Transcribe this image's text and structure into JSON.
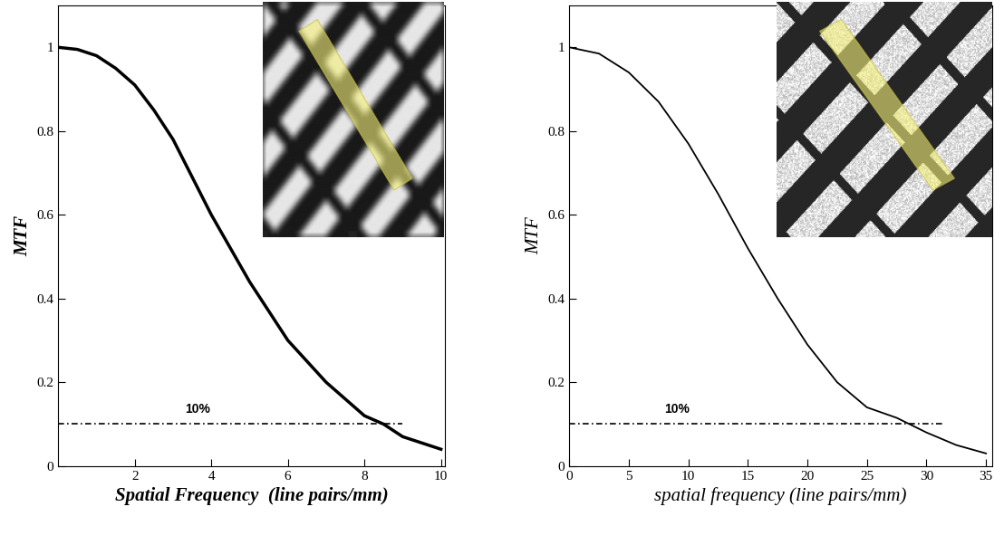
{
  "chart_data": [
    {
      "type": "line",
      "x_label": "Spatial Frequency  (line pairs/mm)",
      "y_label": "MTF",
      "x": [
        0,
        0.5,
        1,
        1.5,
        2,
        2.5,
        3,
        3.5,
        4,
        4.5,
        5,
        5.5,
        6,
        6.5,
        7,
        7.5,
        8,
        8.5,
        9,
        9.5,
        10
      ],
      "values": [
        1.0,
        0.995,
        0.98,
        0.95,
        0.91,
        0.85,
        0.78,
        0.69,
        0.6,
        0.52,
        0.44,
        0.37,
        0.3,
        0.25,
        0.2,
        0.16,
        0.12,
        0.1,
        0.07,
        0.055,
        0.04
      ],
      "color": "#000000",
      "line_style": "solid",
      "xlim": [
        0,
        10.1
      ],
      "ylim": [
        0,
        1.1
      ],
      "xticks": [
        2,
        4,
        6,
        8,
        10
      ],
      "yticks": [
        0,
        0.2,
        0.4,
        0.6,
        0.8,
        1
      ],
      "reference_line": {
        "y": 0.1,
        "x": [
          0,
          9
        ],
        "label": "10%",
        "label_x": 3.3
      }
    },
    {
      "type": "line",
      "x_label": "spatial frequency (line pairs/mm)",
      "y_label": "MTF",
      "x": [
        0,
        2.5,
        5,
        7.5,
        10,
        12.5,
        15,
        17.5,
        20,
        22.5,
        25,
        27.5,
        30,
        32.5,
        35
      ],
      "values": [
        1.0,
        0.985,
        0.94,
        0.87,
        0.77,
        0.65,
        0.52,
        0.4,
        0.29,
        0.2,
        0.14,
        0.115,
        0.08,
        0.05,
        0.03
      ],
      "color": "#000000",
      "line_style": "solid",
      "xlim": [
        0,
        35.5
      ],
      "ylim": [
        0,
        1.1
      ],
      "xticks": [
        0,
        5,
        10,
        15,
        20,
        25,
        30,
        35
      ],
      "yticks": [
        0,
        0.2,
        0.4,
        0.6,
        0.8,
        1
      ],
      "reference_line": {
        "y": 0.1,
        "x": [
          0,
          31.5
        ],
        "label": "10%",
        "label_x": 8
      }
    }
  ]
}
